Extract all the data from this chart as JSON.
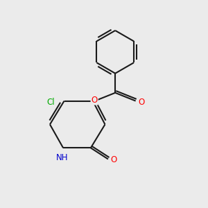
{
  "bg_color": "#ebebeb",
  "bond_color": "#1a1a1a",
  "bond_width": 1.5,
  "atom_colors": {
    "O": "#ff0000",
    "N": "#0000cc",
    "Cl": "#00aa00",
    "C": "#1a1a1a"
  },
  "font_size_atom": 8.5
}
